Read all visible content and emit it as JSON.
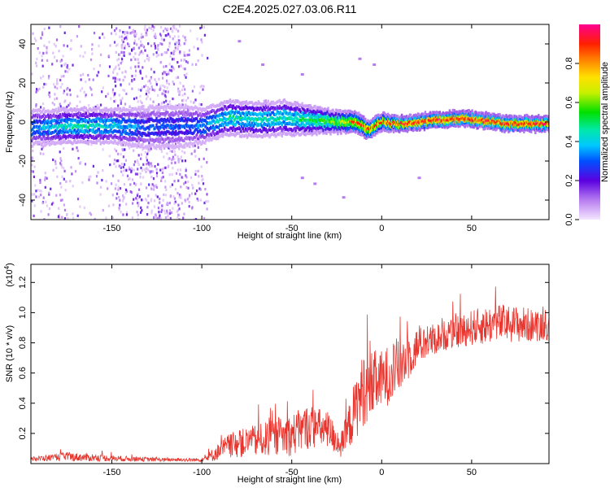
{
  "title": "C2E4.2025.027.03.06.R11",
  "chart_data": [
    {
      "type": "heatmap",
      "xlabel": "Height of straight line (km)",
      "ylabel": "Frequency (Hz)",
      "xlim": [
        -195,
        93
      ],
      "ylim": [
        -50,
        50
      ],
      "x_ticks": [
        -150,
        -100,
        -50,
        0,
        50
      ],
      "y_ticks": [
        -40,
        -20,
        0,
        20,
        40
      ],
      "colorbar": {
        "label": "Normalized spectral amplitude",
        "range": [
          0,
          1
        ],
        "ticks": [
          "0.0",
          "0.2",
          "0.4",
          "0.6",
          "0.8"
        ],
        "tick_values": [
          0.0,
          0.2,
          0.4,
          0.6,
          0.8
        ]
      },
      "ridge": [
        {
          "x": -195,
          "freq": -3,
          "amp": 0.35,
          "width": 5
        },
        {
          "x": -170,
          "freq": -2,
          "amp": 0.45,
          "width": 5
        },
        {
          "x": -150,
          "freq": -2,
          "amp": 0.4,
          "width": 5
        },
        {
          "x": -130,
          "freq": -3,
          "amp": 0.3,
          "width": 6
        },
        {
          "x": -110,
          "freq": -2,
          "amp": 0.3,
          "width": 6
        },
        {
          "x": -100,
          "freq": -2,
          "amp": 0.35,
          "width": 5
        },
        {
          "x": -85,
          "freq": 2,
          "amp": 0.45,
          "width": 5
        },
        {
          "x": -70,
          "freq": 1,
          "amp": 0.45,
          "width": 5
        },
        {
          "x": -55,
          "freq": 2,
          "amp": 0.45,
          "width": 5
        },
        {
          "x": -40,
          "freq": 1,
          "amp": 0.5,
          "width": 4
        },
        {
          "x": -25,
          "freq": 0,
          "amp": 0.6,
          "width": 3
        },
        {
          "x": -15,
          "freq": 0,
          "amp": 0.75,
          "width": 3
        },
        {
          "x": -8,
          "freq": -4,
          "amp": 0.8,
          "width": 2.5
        },
        {
          "x": 0,
          "freq": 0,
          "amp": 0.75,
          "width": 2.5
        },
        {
          "x": 10,
          "freq": -1,
          "amp": 0.85,
          "width": 2
        },
        {
          "x": 30,
          "freq": 1,
          "amp": 0.9,
          "width": 2
        },
        {
          "x": 45,
          "freq": 2,
          "amp": 0.9,
          "width": 2
        },
        {
          "x": 60,
          "freq": 0,
          "amp": 0.9,
          "width": 2
        },
        {
          "x": 75,
          "freq": -1,
          "amp": 0.9,
          "width": 2
        },
        {
          "x": 93,
          "freq": -1,
          "amp": 0.9,
          "width": 2
        }
      ],
      "noise_bands": [
        {
          "x": [
            -195,
            -175
          ],
          "density": 0.5
        },
        {
          "x": [
            -175,
            -150
          ],
          "density": 0.25
        },
        {
          "x": [
            -150,
            -108
          ],
          "density": 0.9
        },
        {
          "x": [
            -108,
            -97
          ],
          "density": 0.35
        }
      ],
      "points": [
        {
          "x": -80,
          "freq": 42,
          "amp": 0.1
        },
        {
          "x": -67,
          "freq": 30,
          "amp": 0.1
        },
        {
          "x": -45,
          "freq": 25,
          "amp": 0.1
        },
        {
          "x": -13,
          "freq": 33,
          "amp": 0.1
        },
        {
          "x": -5,
          "freq": 30,
          "amp": 0.1
        },
        {
          "x": -45,
          "freq": -28,
          "amp": 0.1
        },
        {
          "x": -38,
          "freq": -31,
          "amp": 0.1
        },
        {
          "x": -22,
          "freq": -38,
          "amp": 0.1
        },
        {
          "x": 20,
          "freq": -28,
          "amp": 0.1
        }
      ]
    },
    {
      "type": "line",
      "xlabel": "Height of straight line (km)",
      "ylabel": "SNR (10 * v/v)",
      "y_multiplier": "(x10",
      "y_multiplier_exp": "4",
      "y_multiplier_close": ")",
      "xlim": [
        -195,
        93
      ],
      "ylim": [
        0,
        1.32
      ],
      "x_ticks": [
        -150,
        -100,
        -50,
        0,
        50
      ],
      "y_ticks": [
        0.2,
        0.4,
        0.6,
        0.8,
        1.0,
        1.2
      ],
      "y_tick_labels": [
        "0.2",
        "0.4",
        "0.6",
        "0.8",
        "1.0",
        "1.2"
      ],
      "series": [
        {
          "color": "#e8352e",
          "envelope": [
            {
              "x": -195,
              "base": 0.03,
              "amp": 0.015
            },
            {
              "x": -175,
              "base": 0.045,
              "amp": 0.03
            },
            {
              "x": -150,
              "base": 0.035,
              "amp": 0.02
            },
            {
              "x": -120,
              "base": 0.025,
              "amp": 0.012
            },
            {
              "x": -100,
              "base": 0.025,
              "amp": 0.012
            },
            {
              "x": -95,
              "base": 0.05,
              "amp": 0.04
            },
            {
              "x": -85,
              "base": 0.12,
              "amp": 0.08
            },
            {
              "x": -75,
              "base": 0.14,
              "amp": 0.1
            },
            {
              "x": -60,
              "base": 0.17,
              "amp": 0.12
            },
            {
              "x": -50,
              "base": 0.19,
              "amp": 0.14
            },
            {
              "x": -40,
              "base": 0.25,
              "amp": 0.15
            },
            {
              "x": -30,
              "base": 0.22,
              "amp": 0.12
            },
            {
              "x": -22,
              "base": 0.12,
              "amp": 0.1
            },
            {
              "x": -15,
              "base": 0.35,
              "amp": 0.2
            },
            {
              "x": -10,
              "base": 0.5,
              "amp": 0.25
            },
            {
              "x": 0,
              "base": 0.55,
              "amp": 0.2
            },
            {
              "x": 10,
              "base": 0.65,
              "amp": 0.2
            },
            {
              "x": 20,
              "base": 0.78,
              "amp": 0.12
            },
            {
              "x": 35,
              "base": 0.85,
              "amp": 0.1
            },
            {
              "x": 50,
              "base": 0.9,
              "amp": 0.12
            },
            {
              "x": 65,
              "base": 0.93,
              "amp": 0.13
            },
            {
              "x": 80,
              "base": 0.92,
              "amp": 0.12
            },
            {
              "x": 93,
              "base": 0.9,
              "amp": 0.08
            }
          ]
        }
      ]
    }
  ]
}
